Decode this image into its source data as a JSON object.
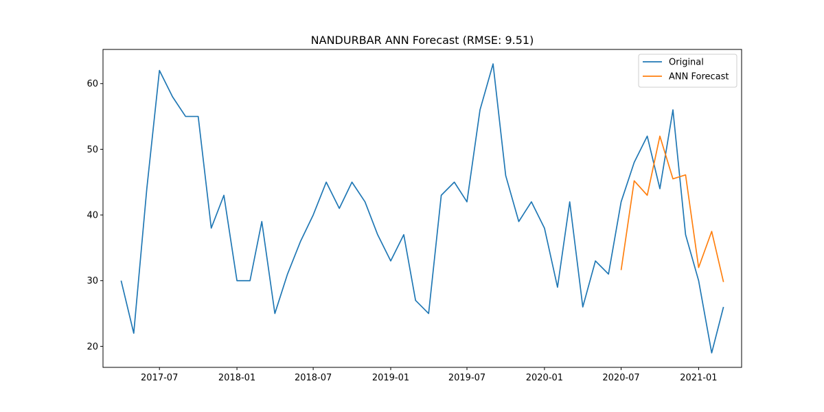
{
  "chart_data": {
    "type": "line",
    "title": "NANDURBAR ANN Forecast (RMSE: 9.51)",
    "xlabel": "",
    "ylabel": "",
    "x_axis_type": "date",
    "xlim": [
      "2017-02-17",
      "2021-04-13"
    ],
    "ylim": [
      16.8,
      65.2
    ],
    "grid": false,
    "legend_position": "top-right",
    "x_ticks": [
      "2017-07-01",
      "2018-01-01",
      "2018-07-01",
      "2019-01-01",
      "2019-07-01",
      "2020-01-01",
      "2020-07-01",
      "2021-01-01"
    ],
    "x_tick_labels": [
      "2017-07",
      "2018-01",
      "2018-07",
      "2019-01",
      "2019-07",
      "2020-01",
      "2020-07",
      "2021-01"
    ],
    "y_ticks": [
      20,
      30,
      40,
      50,
      60
    ],
    "y_tick_labels": [
      "20",
      "30",
      "40",
      "50",
      "60"
    ],
    "series": [
      {
        "name": "Original",
        "color": "#1f77b4",
        "x": [
          "2017-04-01",
          "2017-05-01",
          "2017-06-01",
          "2017-07-01",
          "2017-08-01",
          "2017-09-01",
          "2017-10-01",
          "2017-11-01",
          "2017-12-01",
          "2018-01-01",
          "2018-02-01",
          "2018-03-01",
          "2018-04-01",
          "2018-05-01",
          "2018-06-01",
          "2018-07-01",
          "2018-08-01",
          "2018-09-01",
          "2018-10-01",
          "2018-11-01",
          "2018-12-01",
          "2019-01-01",
          "2019-02-01",
          "2019-03-01",
          "2019-04-01",
          "2019-05-01",
          "2019-06-01",
          "2019-07-01",
          "2019-08-01",
          "2019-09-01",
          "2019-10-01",
          "2019-11-01",
          "2019-12-01",
          "2020-01-01",
          "2020-02-01",
          "2020-03-01",
          "2020-04-01",
          "2020-05-01",
          "2020-06-01",
          "2020-07-01",
          "2020-08-01",
          "2020-09-01",
          "2020-10-01",
          "2020-11-01",
          "2020-12-01",
          "2021-01-01",
          "2021-02-01",
          "2021-03-01"
        ],
        "values": [
          30,
          22,
          44,
          62,
          58,
          55,
          55,
          38,
          43,
          30,
          30,
          39,
          25,
          31,
          36,
          40,
          45,
          41,
          45,
          42,
          37,
          33,
          37,
          27,
          25,
          43,
          45,
          42,
          56,
          63,
          46,
          39,
          42,
          38,
          29,
          42,
          26,
          33,
          31,
          42,
          48,
          52,
          44,
          56,
          37,
          30,
          19,
          26
        ]
      },
      {
        "name": "ANN Forecast",
        "color": "#ff7f0e",
        "x": [
          "2020-07-01",
          "2020-08-01",
          "2020-09-01",
          "2020-10-01",
          "2020-11-01",
          "2020-12-01",
          "2021-01-01",
          "2021-02-01",
          "2021-03-01"
        ],
        "values": [
          31.6,
          45.2,
          43.0,
          52.0,
          45.5,
          46.1,
          32.0,
          37.5,
          29.8
        ]
      }
    ]
  }
}
